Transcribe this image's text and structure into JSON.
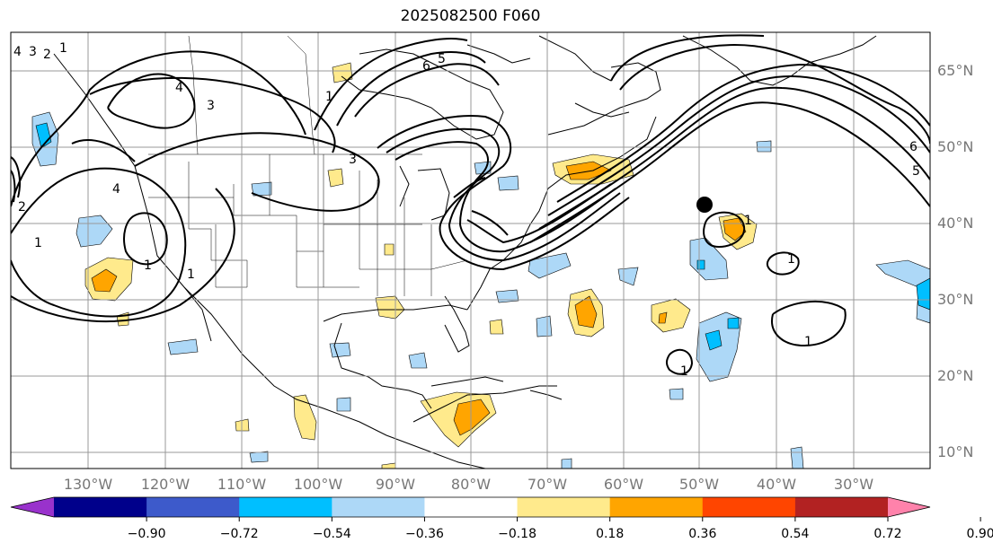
{
  "title": "2025082500 F060",
  "lat_labels": [
    "65°N",
    "60°N",
    "50°N",
    "40°N",
    "30°N",
    "20°N",
    "10°N"
  ],
  "lon_labels": [
    "130°W",
    "120°W",
    "110°W",
    "100°W",
    "90°W",
    "80°W",
    "70°W",
    "60°W",
    "50°W",
    "40°W",
    "30°W"
  ],
  "colorbar": {
    "ticks": [
      "−0.90",
      "−0.72",
      "−0.54",
      "−0.36",
      "−0.18",
      "0.18",
      "0.36",
      "0.54",
      "0.72",
      "0.90"
    ],
    "colors": [
      "#9932cc",
      "#00008b",
      "#3d5acb",
      "#00bfff",
      "#add8f7",
      "#ffffff",
      "#ffea8c",
      "#ffa500",
      "#ff4500",
      "#b22222",
      "#ff82ab"
    ]
  },
  "contour_labels": [
    "4",
    "3",
    "2",
    "1",
    "6",
    "5",
    "4",
    "4",
    "3",
    "2",
    "1",
    "3",
    "1",
    "1",
    "1",
    "6",
    "5",
    "1",
    "1",
    "1",
    "1"
  ]
}
